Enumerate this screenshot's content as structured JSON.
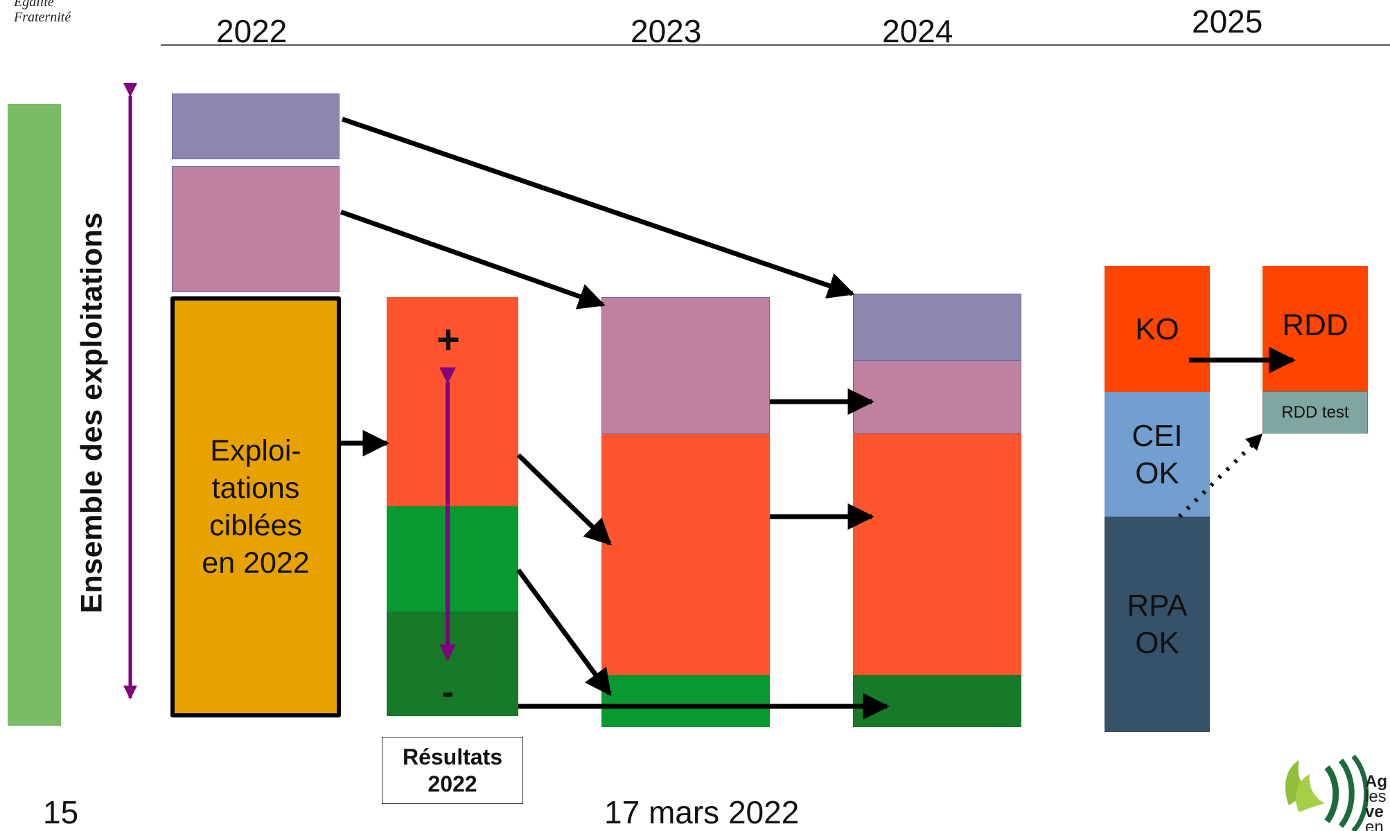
{
  "header": {
    "motto_line1": "Égalité",
    "motto_line2": "Fraternité",
    "years": [
      "2022",
      "2023",
      "2024",
      "2025"
    ]
  },
  "diagram": {
    "axis_label": "Ensemble des exploitations",
    "target_box_label": "Exploi-\ntations\nciblées\nen 2022",
    "results_plus": "+",
    "results_minus": "-",
    "results_caption": "Résultats\n2022",
    "col_2025": {
      "ko": "KO",
      "cei_ok": "CEI\nOK",
      "rpa_ok": "RPA\nOK",
      "rdd": "RDD",
      "rdd_test": "RDD test"
    },
    "colors": {
      "violet": "#8e86ae",
      "mauve": "#c0809f",
      "orange_target": "#e8a200",
      "red": "#ff552e",
      "green": "#089a31",
      "dark_green": "#177a29",
      "purple_arrow": "#800080",
      "ko_red": "#ff4500",
      "cei_blue": "#729fcf",
      "rpa_navy": "#355269",
      "rdd_test_teal": "#7fa6a0",
      "side_strip_green": "#79bc66"
    }
  },
  "footer": {
    "page_number": "15",
    "date": "17 mars 2022",
    "logo_fragments": [
      "Ag",
      "les",
      "ve",
      "en"
    ]
  }
}
